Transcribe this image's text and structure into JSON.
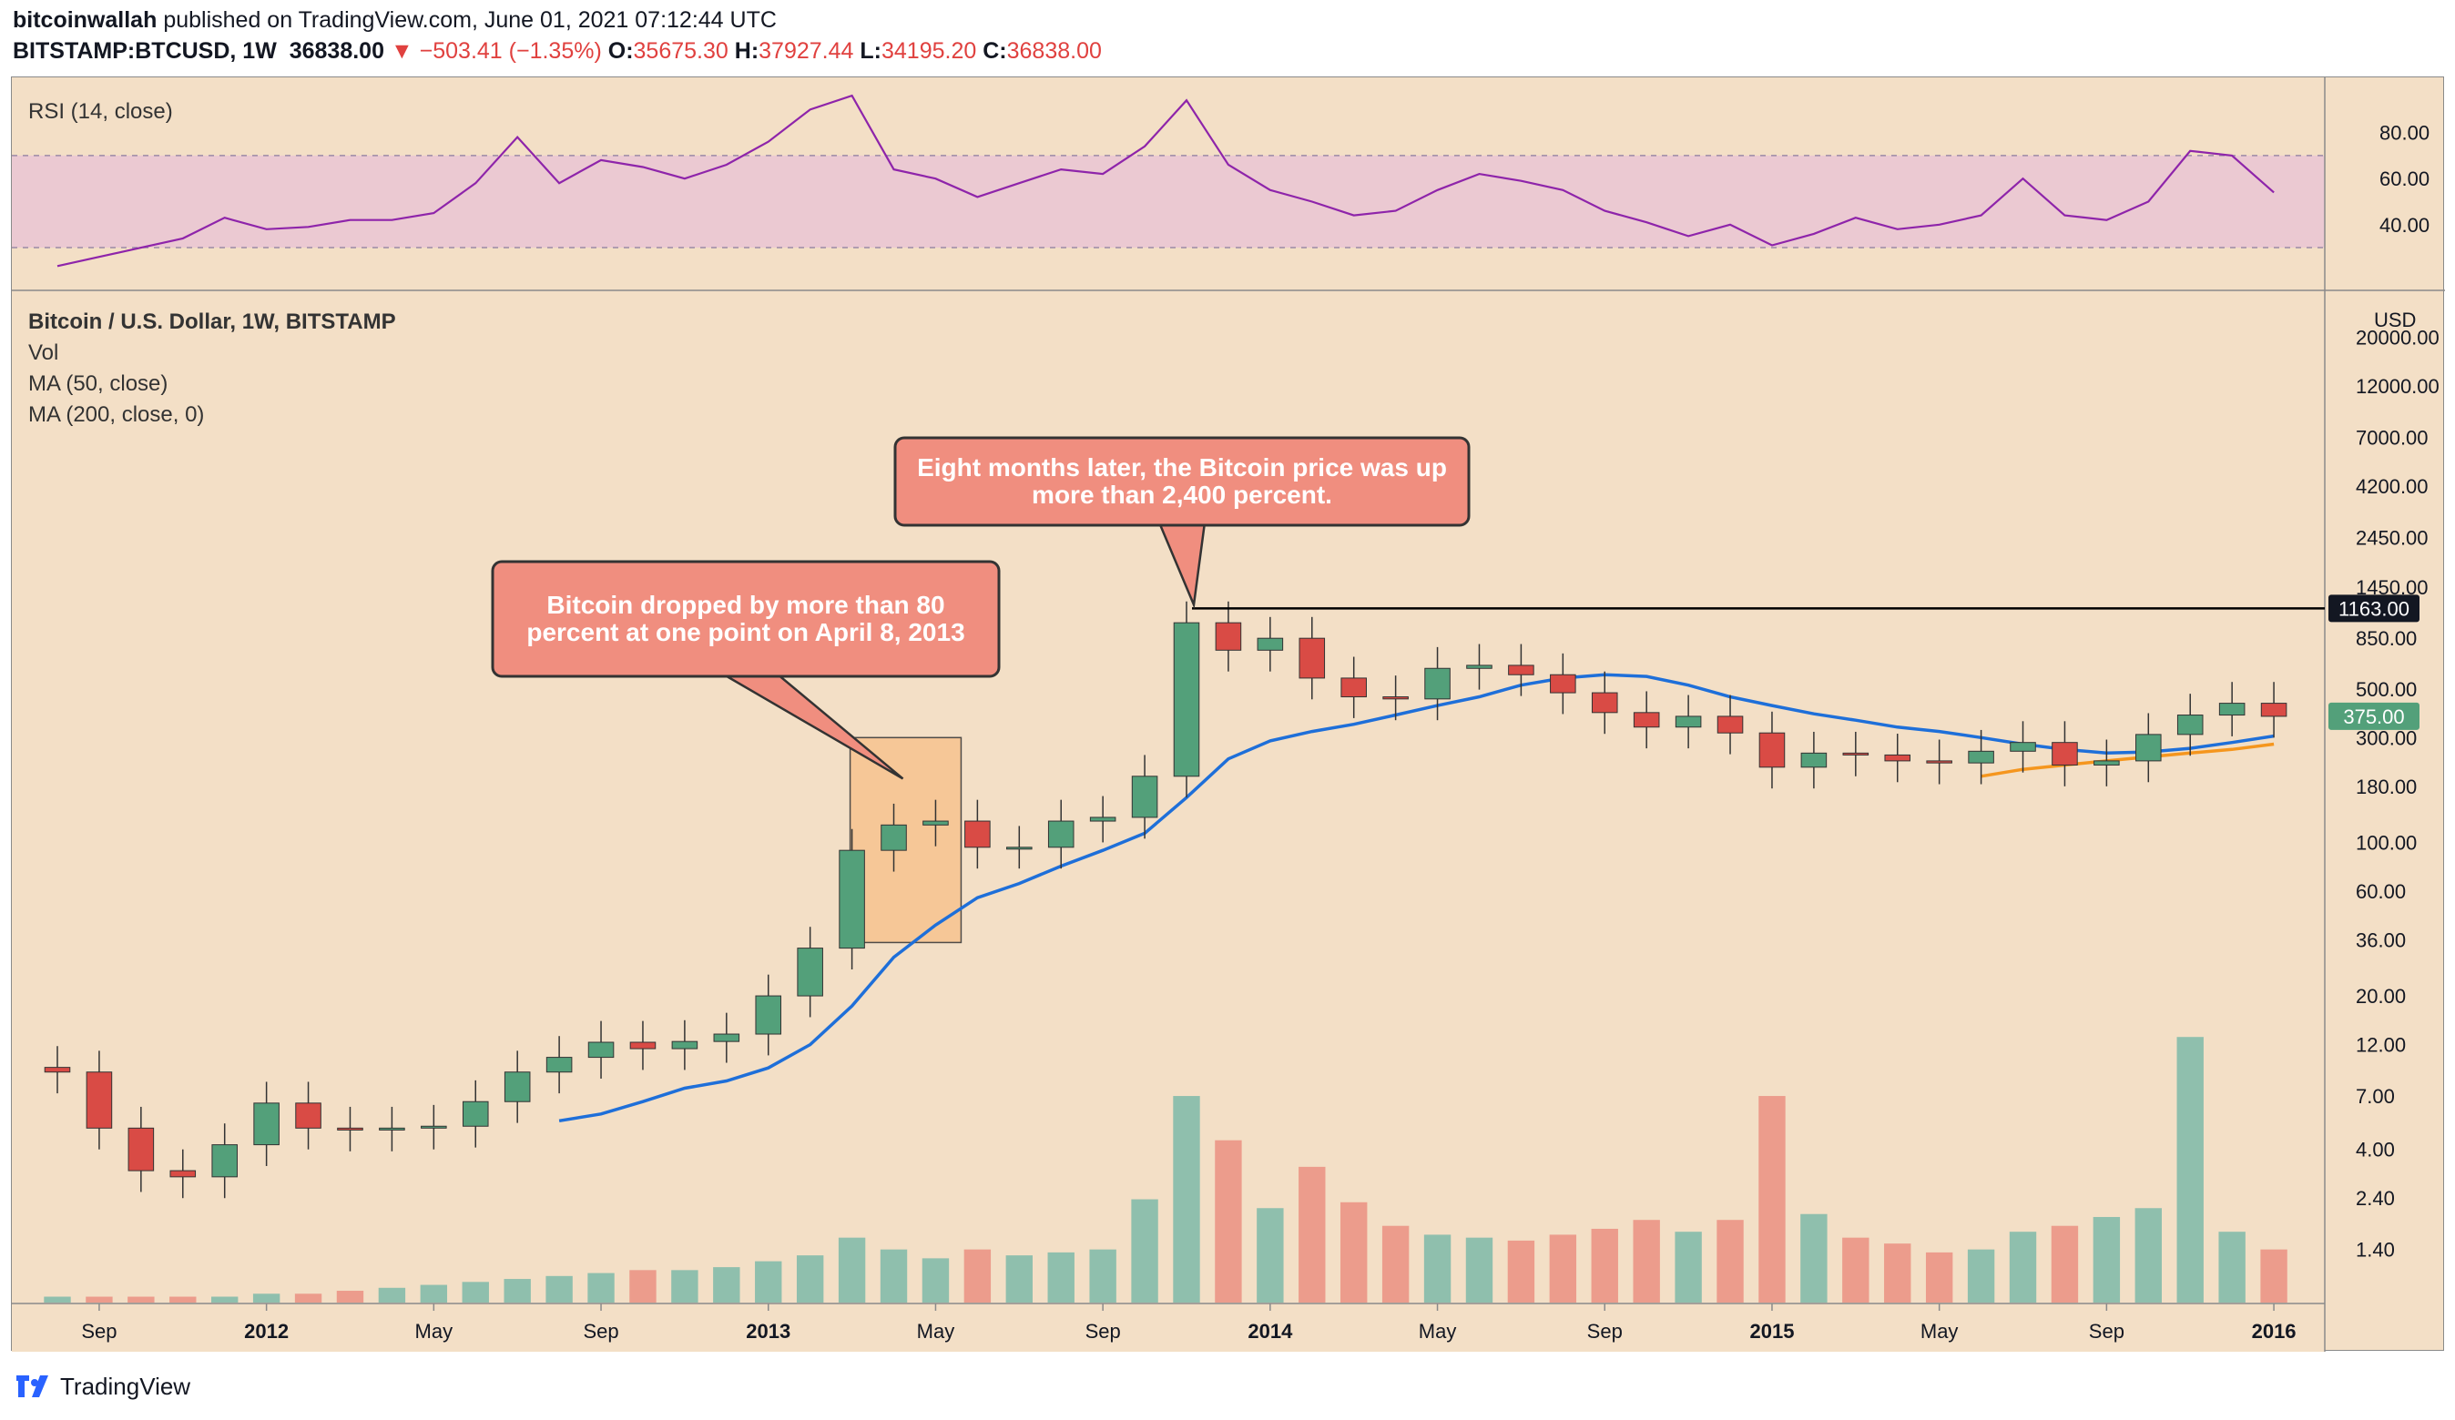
{
  "header": {
    "author": "bitcoinwallah",
    "published": "published on TradingView.com, June 01, 2021 07:12:44 UTC",
    "symbol": "BITSTAMP:BTCUSD, 1W",
    "last": "36838.00",
    "change": "−503.41 (−1.35%)",
    "o_label": "O:",
    "o_value": "35675.30",
    "h_label": "H:",
    "h_value": "37927.44",
    "l_label": "L:",
    "l_value": "34195.20",
    "c_label": "C:",
    "c_value": "36838.00"
  },
  "footer": {
    "brand": "TradingView"
  },
  "colors": {
    "background": "#f3dfc6",
    "up": "#53a07a",
    "down": "#d94b45",
    "vol_up": "#8fbfad",
    "vol_down": "#ec9c8c",
    "rsi_line": "#8e24aa",
    "ma50": "#1e6fd9",
    "ma200": "#f5961e",
    "callout_fill": "#f08e7f",
    "highlight_box": "#f7c38f",
    "price_tag": "#53a07a"
  },
  "chart_data": [
    {
      "type": "line",
      "title": "RSI (14, close)",
      "y_ticks": [
        "80.00",
        "60.00",
        "40.00"
      ],
      "band": [
        30,
        70
      ],
      "x": [
        "2011-08",
        "2011-09",
        "2011-10",
        "2011-11",
        "2011-12",
        "2012-01",
        "2012-02",
        "2012-03",
        "2012-04",
        "2012-05",
        "2012-06",
        "2012-07",
        "2012-08",
        "2012-09",
        "2012-10",
        "2012-11",
        "2012-12",
        "2013-01",
        "2013-02",
        "2013-03",
        "2013-04",
        "2013-05",
        "2013-06",
        "2013-07",
        "2013-08",
        "2013-09",
        "2013-10",
        "2013-11",
        "2013-12",
        "2014-01",
        "2014-02",
        "2014-03",
        "2014-04",
        "2014-05",
        "2014-06",
        "2014-07",
        "2014-08",
        "2014-09",
        "2014-10",
        "2014-11",
        "2014-12",
        "2015-01",
        "2015-02",
        "2015-03",
        "2015-04",
        "2015-05",
        "2015-06",
        "2015-07",
        "2015-08",
        "2015-09",
        "2015-10",
        "2015-11",
        "2015-12",
        "2016-01"
      ],
      "values": [
        22,
        26,
        30,
        34,
        43,
        38,
        39,
        42,
        42,
        45,
        58,
        78,
        58,
        68,
        65,
        60,
        66,
        76,
        90,
        96,
        64,
        60,
        52,
        58,
        64,
        62,
        74,
        94,
        66,
        55,
        50,
        44,
        46,
        55,
        62,
        59,
        55,
        46,
        41,
        35,
        40,
        31,
        36,
        43,
        38,
        40,
        44,
        60,
        44,
        42,
        50,
        72,
        70,
        54
      ]
    },
    {
      "type": "candlestick",
      "title": "Bitcoin / U.S. Dollar, 1W, BITSTAMP",
      "legend": [
        "Vol",
        "MA (50, close)",
        "MA (200, close, 0)"
      ],
      "price_scale_label": "USD",
      "y_scale": "log",
      "y_ticks": [
        "20000.00",
        "12000.00",
        "7000.00",
        "4200.00",
        "2450.00",
        "1450.00",
        "850.00",
        "500.00",
        "300.00",
        "180.00",
        "100.00",
        "60.00",
        "36.00",
        "20.00",
        "12.00",
        "7.00",
        "4.00",
        "2.40",
        "1.40"
      ],
      "x_ticks": [
        "Sep",
        "2012",
        "May",
        "Sep",
        "2013",
        "May",
        "Sep",
        "2014",
        "May",
        "Sep",
        "2015",
        "May",
        "Sep",
        "2016"
      ],
      "x": [
        "2011-08",
        "2011-09",
        "2011-10",
        "2011-11",
        "2011-12",
        "2012-01",
        "2012-02",
        "2012-03",
        "2012-04",
        "2012-05",
        "2012-06",
        "2012-07",
        "2012-08",
        "2012-09",
        "2012-10",
        "2012-11",
        "2012-12",
        "2013-01",
        "2013-02",
        "2013-03",
        "2013-04",
        "2013-05",
        "2013-06",
        "2013-07",
        "2013-08",
        "2013-09",
        "2013-10",
        "2013-11",
        "2013-12",
        "2014-01",
        "2014-02",
        "2014-03",
        "2014-04",
        "2014-05",
        "2014-06",
        "2014-07",
        "2014-08",
        "2014-09",
        "2014-10",
        "2014-11",
        "2014-12",
        "2015-01",
        "2015-02",
        "2015-03",
        "2015-04",
        "2015-05",
        "2015-06",
        "2015-07",
        "2015-08",
        "2015-09",
        "2015-10",
        "2015-11",
        "2015-12",
        "2016-01"
      ],
      "close": [
        9,
        5,
        3.2,
        3,
        4.2,
        6.5,
        5,
        4.9,
        5,
        5.1,
        6.6,
        9,
        10.5,
        12.3,
        11.5,
        12.4,
        13.4,
        20,
        33,
        92,
        120,
        125,
        95,
        95,
        125,
        130,
        200,
        1000,
        750,
        850,
        560,
        460,
        450,
        620,
        640,
        580,
        480,
        390,
        335,
        375,
        315,
        220,
        255,
        250,
        235,
        230,
        260,
        285,
        225,
        235,
        310,
        380,
        430,
        375
      ],
      "ma50": [
        null,
        null,
        null,
        null,
        null,
        null,
        null,
        null,
        null,
        null,
        null,
        null,
        5.4,
        5.8,
        6.6,
        7.6,
        8.2,
        9.4,
        12,
        18,
        30,
        42,
        56,
        65,
        78,
        92,
        110,
        160,
        240,
        290,
        320,
        345,
        380,
        420,
        460,
        520,
        560,
        580,
        570,
        520,
        460,
        420,
        385,
        360,
        335,
        320,
        300,
        280,
        265,
        255,
        258,
        268,
        285,
        305
      ],
      "ma200_segment": {
        "from": "2015-06",
        "to": "2016-01",
        "values": [
          200,
          215,
          225,
          235,
          245,
          255,
          265,
          280
        ]
      },
      "volume": [
        0.2,
        0.2,
        0.2,
        0.2,
        0.2,
        0.3,
        0.3,
        0.4,
        0.5,
        0.6,
        0.7,
        0.8,
        0.9,
        1.0,
        1.1,
        1.1,
        1.2,
        1.4,
        1.6,
        2.2,
        1.8,
        1.5,
        1.8,
        1.6,
        1.7,
        1.8,
        3.5,
        7.0,
        5.5,
        3.2,
        4.6,
        3.4,
        2.6,
        2.3,
        2.2,
        2.1,
        2.3,
        2.5,
        2.8,
        2.4,
        2.8,
        7.0,
        3.0,
        2.2,
        2.0,
        1.7,
        1.8,
        2.4,
        2.6,
        2.9,
        3.2,
        9.0,
        2.4,
        1.8
      ],
      "annotations": [
        {
          "text": "Bitcoin dropped by more than 80 percent at one point on April 8, 2013"
        },
        {
          "text": "Eight months later, the Bitcoin price was up more than 2,400 percent."
        }
      ],
      "price_labels": [
        {
          "value": 1163,
          "text": "1163.00"
        },
        {
          "value": 375,
          "text": "375.00"
        }
      ]
    }
  ]
}
